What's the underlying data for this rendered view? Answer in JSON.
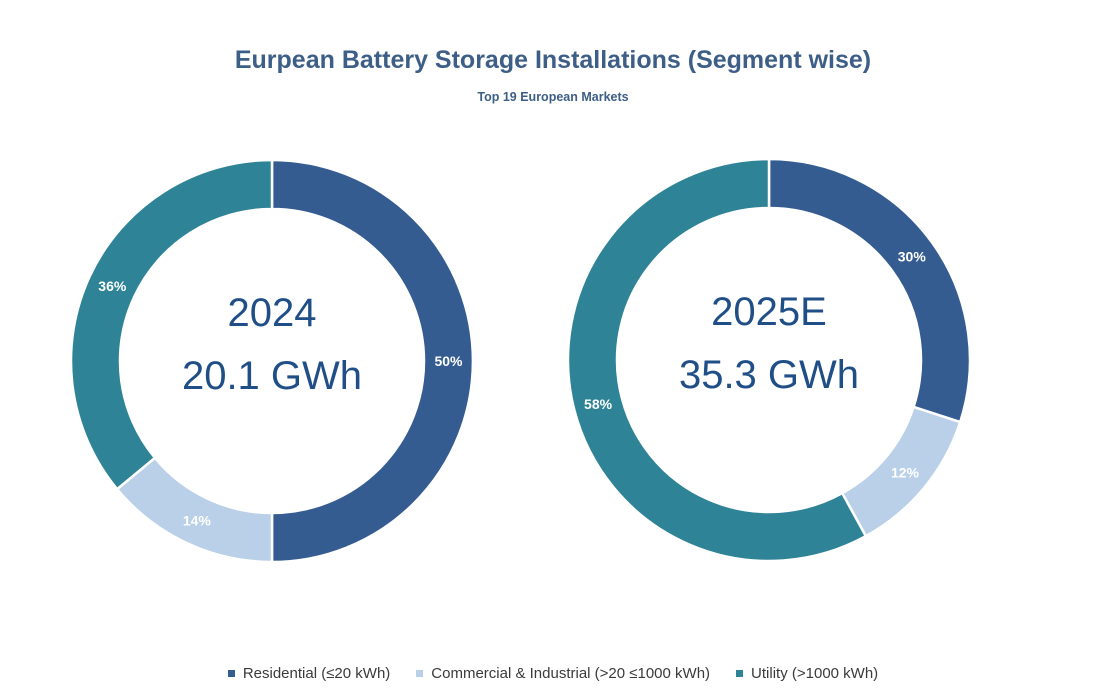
{
  "title": "Eurpean Battery Storage Installations (Segment wise)",
  "subtitle": "Top 19 European Markets",
  "colors": {
    "Residential (≤20 kWh)": "#355c91",
    "Commercial & Industrial (>20 ≤1000 kWh)": "#bad0e8",
    "Utility (>1000 kWh)": "#2f8397"
  },
  "legend": [
    "Residential (≤20 kWh)",
    "Commercial & Industrial (>20 ≤1000 kWh)",
    "Utility (>1000 kWh)"
  ],
  "chart_data": [
    {
      "type": "pie",
      "center_label_1": "2024",
      "center_label_2": "20.1 GWh",
      "categories": [
        "Residential (≤20 kWh)",
        "Commercial & Industrial (>20 ≤1000 kWh)",
        "Utility (>1000 kWh)"
      ],
      "values": [
        50,
        14,
        36
      ],
      "value_labels": [
        "50%",
        "14%",
        "36%"
      ]
    },
    {
      "type": "pie",
      "center_label_1": "2025E",
      "center_label_2": "35.3 GWh",
      "categories": [
        "Residential (≤20 kWh)",
        "Commercial & Industrial (>20 ≤1000 kWh)",
        "Utility (>1000 kWh)"
      ],
      "values": [
        30,
        12,
        58
      ],
      "value_labels": [
        "30%",
        "12%",
        "58%"
      ]
    }
  ]
}
